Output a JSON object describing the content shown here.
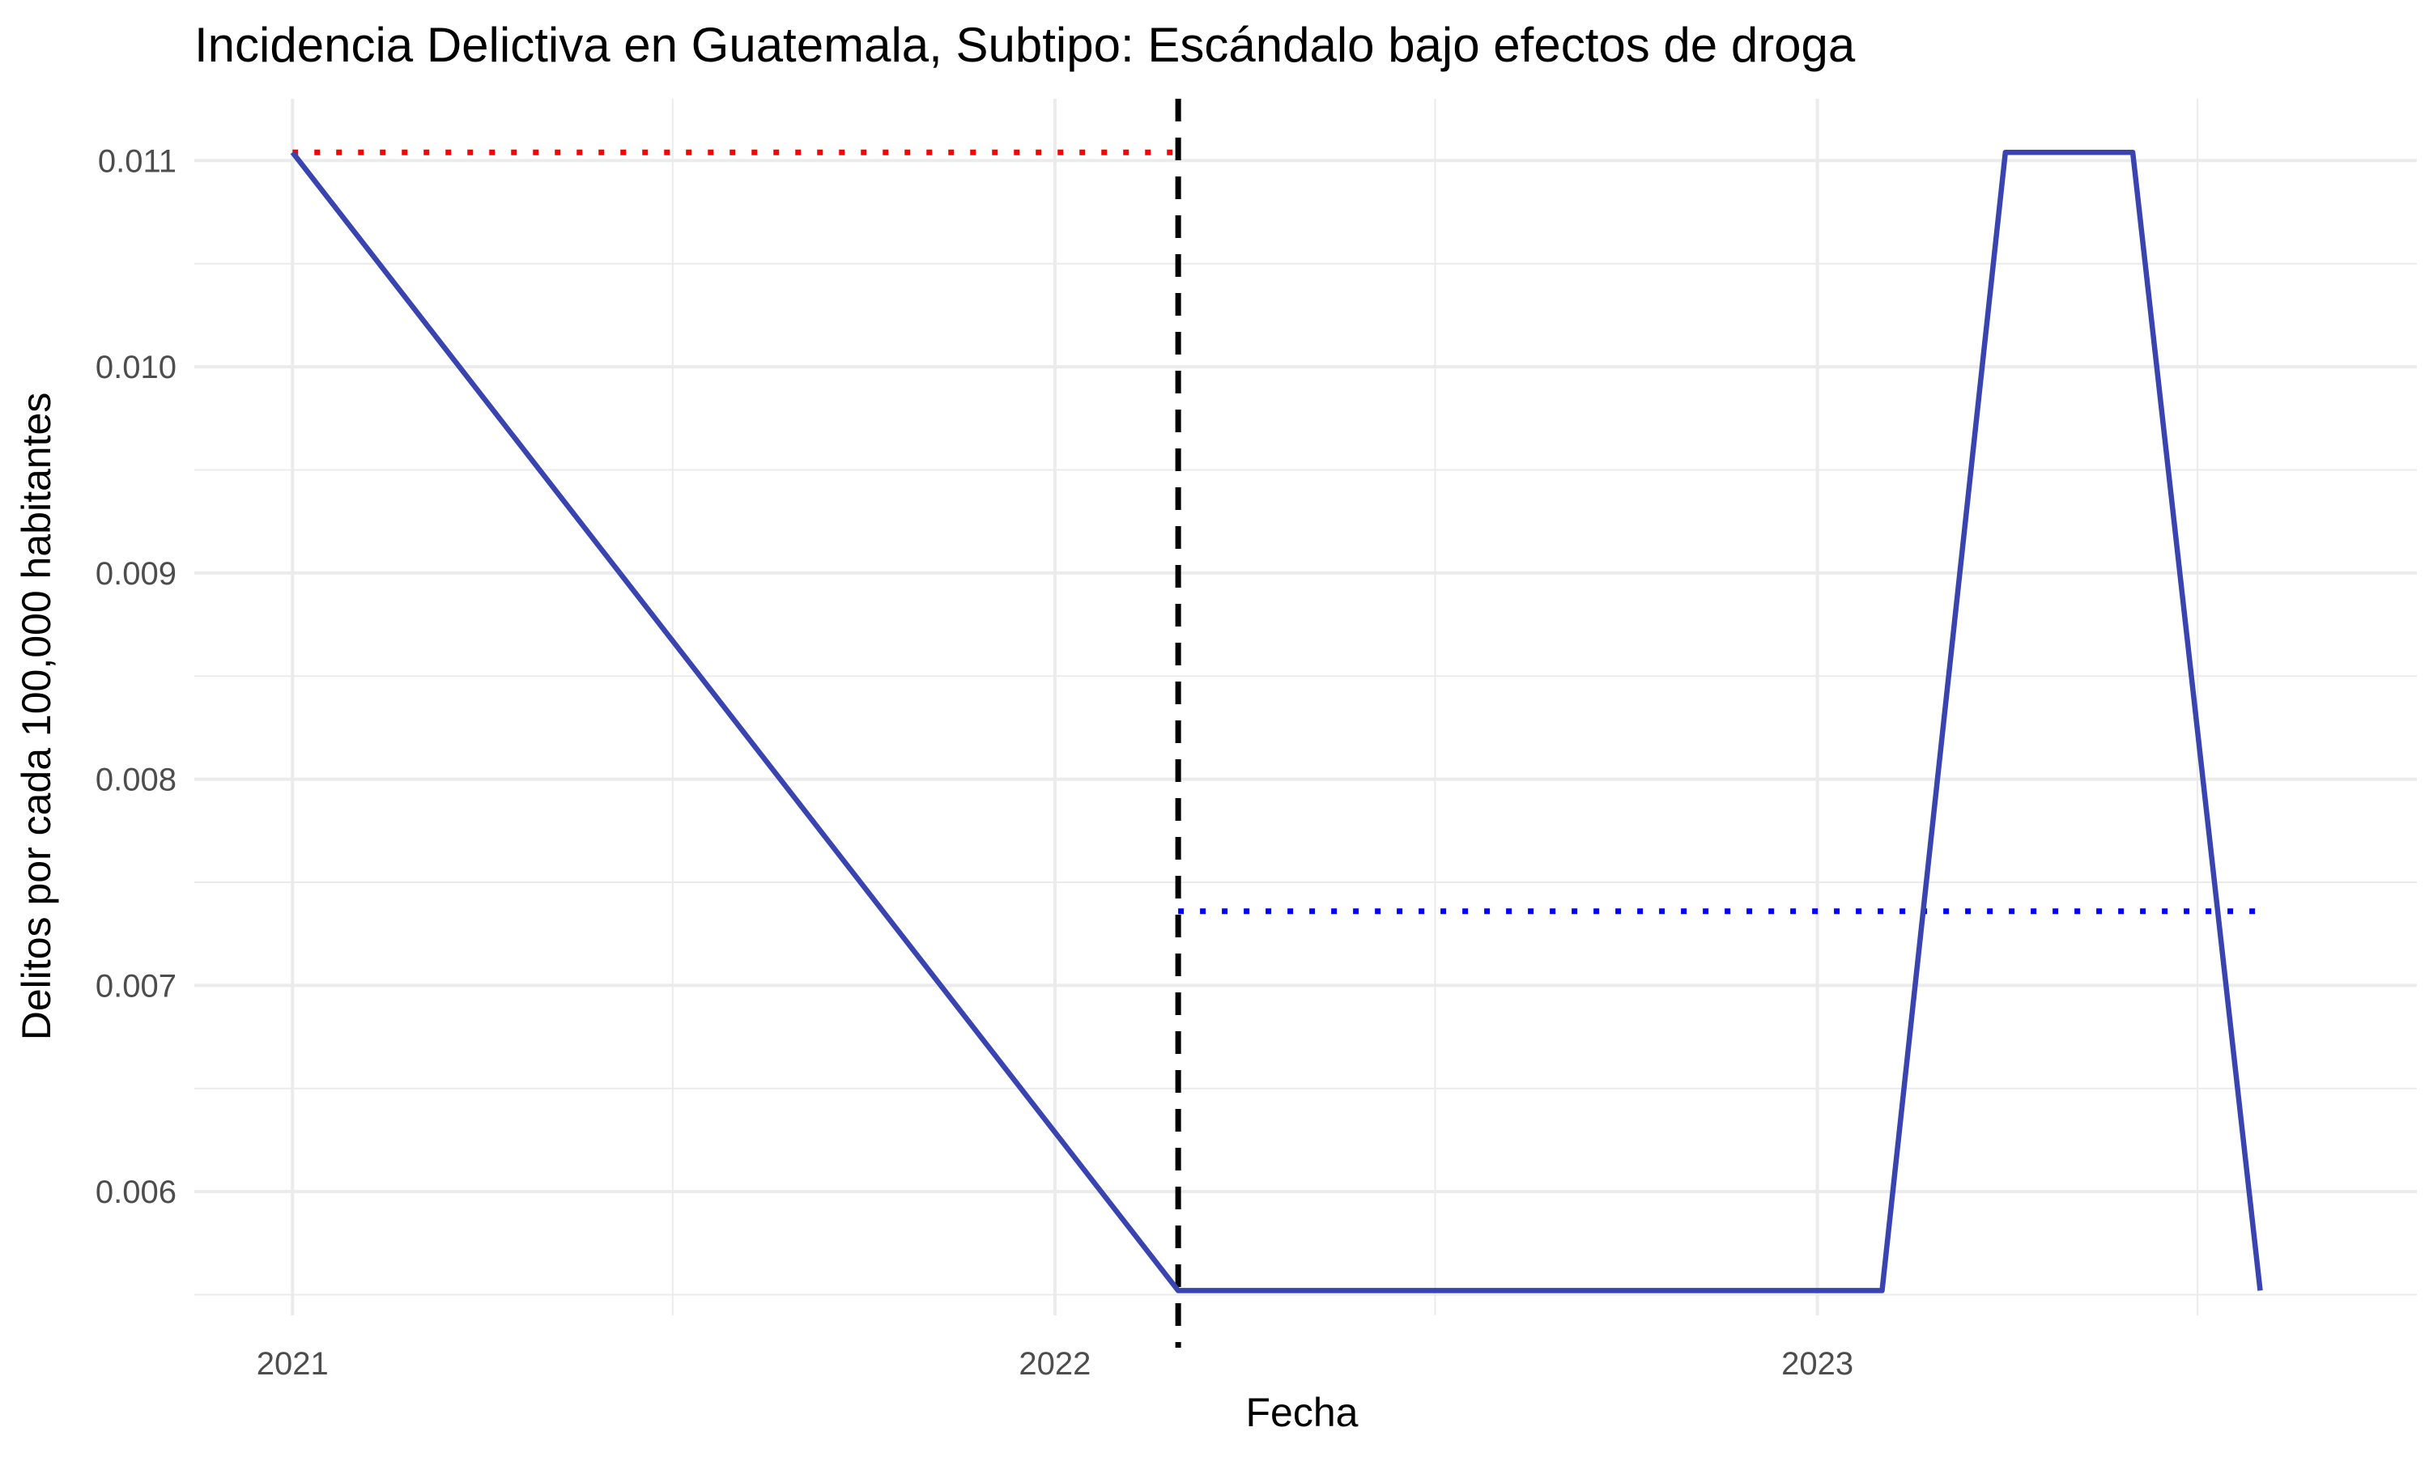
{
  "chart_data": {
    "type": "line",
    "title": "Incidencia Delictiva en Guatemala, Subtipo: Escándalo bajo efectos de droga",
    "xlabel": "Fecha",
    "ylabel": "Delitos por cada 100,000 habitantes",
    "x_ticks": [
      "2021",
      "2022",
      "2023"
    ],
    "y_ticks": [
      "0.006",
      "0.007",
      "0.008",
      "0.009",
      "0.010",
      "0.011"
    ],
    "xlim": [
      "2020-11-15",
      "2023-10-15"
    ],
    "ylim": [
      0.0054,
      0.0113
    ],
    "grid": true,
    "series": [
      {
        "color": "#3a44b0",
        "x": [
          "2021-01-01",
          "2022-03-01",
          "2022-04-01",
          "2023-02-01",
          "2023-04-01",
          "2023-06-01",
          "2023-08-01"
        ],
        "y": [
          0.01104,
          0.00552,
          0.00552,
          0.00552,
          0.01104,
          0.01104,
          0.00552
        ]
      }
    ],
    "reference_lines": [
      {
        "kind": "vertical",
        "style": "dashed",
        "color": "#000000",
        "x": "2022-03-01"
      },
      {
        "kind": "horizontal",
        "style": "dotted",
        "color": "#ff0000",
        "y": 0.01104,
        "x_start": "2021-01-01",
        "x_end": "2022-03-01"
      },
      {
        "kind": "horizontal",
        "style": "dotted",
        "color": "#0000ff",
        "y": 0.00736,
        "x_start": "2022-03-01",
        "x_end": "2023-08-01"
      }
    ]
  }
}
